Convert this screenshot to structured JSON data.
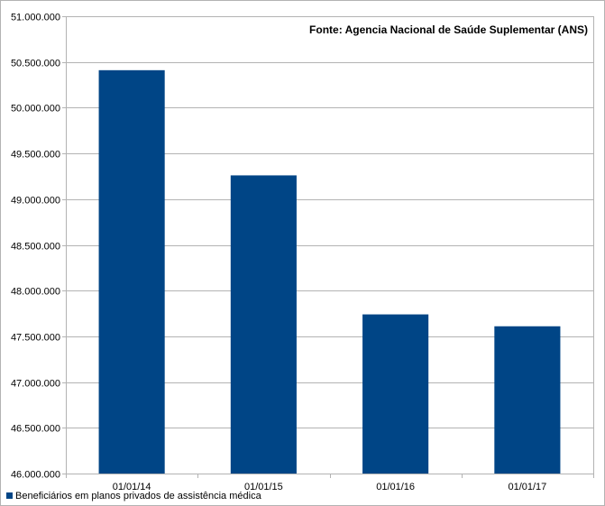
{
  "chart_data": {
    "type": "bar",
    "categories": [
      "01/01/14",
      "01/01/15",
      "01/01/16",
      "01/01/17"
    ],
    "series": [
      {
        "name": "Beneficiários em planos privados de assistência médica",
        "values": [
          50410000,
          49260000,
          47740000,
          47610000
        ],
        "color": "#004586"
      }
    ],
    "title": "",
    "annotation": "Fonte: Agencia Nacional de Saúde Suplementar (ANS)",
    "xlabel": "",
    "ylabel": "",
    "ylim": [
      46000000,
      51000000
    ],
    "yticks": [
      46000000,
      46500000,
      47000000,
      47500000,
      48000000,
      48500000,
      49000000,
      49500000,
      50000000,
      50500000,
      51000000
    ],
    "ytick_labels": [
      "46.000.000",
      "46.500.000",
      "47.000.000",
      "47.500.000",
      "48.000.000",
      "48.500.000",
      "49.000.000",
      "49.500.000",
      "50.000.000",
      "50.500.000",
      "51.000.000"
    ],
    "grid": true,
    "legend_position": "bottom-left",
    "annotation_position": "top-right",
    "bar_color": "#004586",
    "grid_color": "#b3b3b3"
  }
}
